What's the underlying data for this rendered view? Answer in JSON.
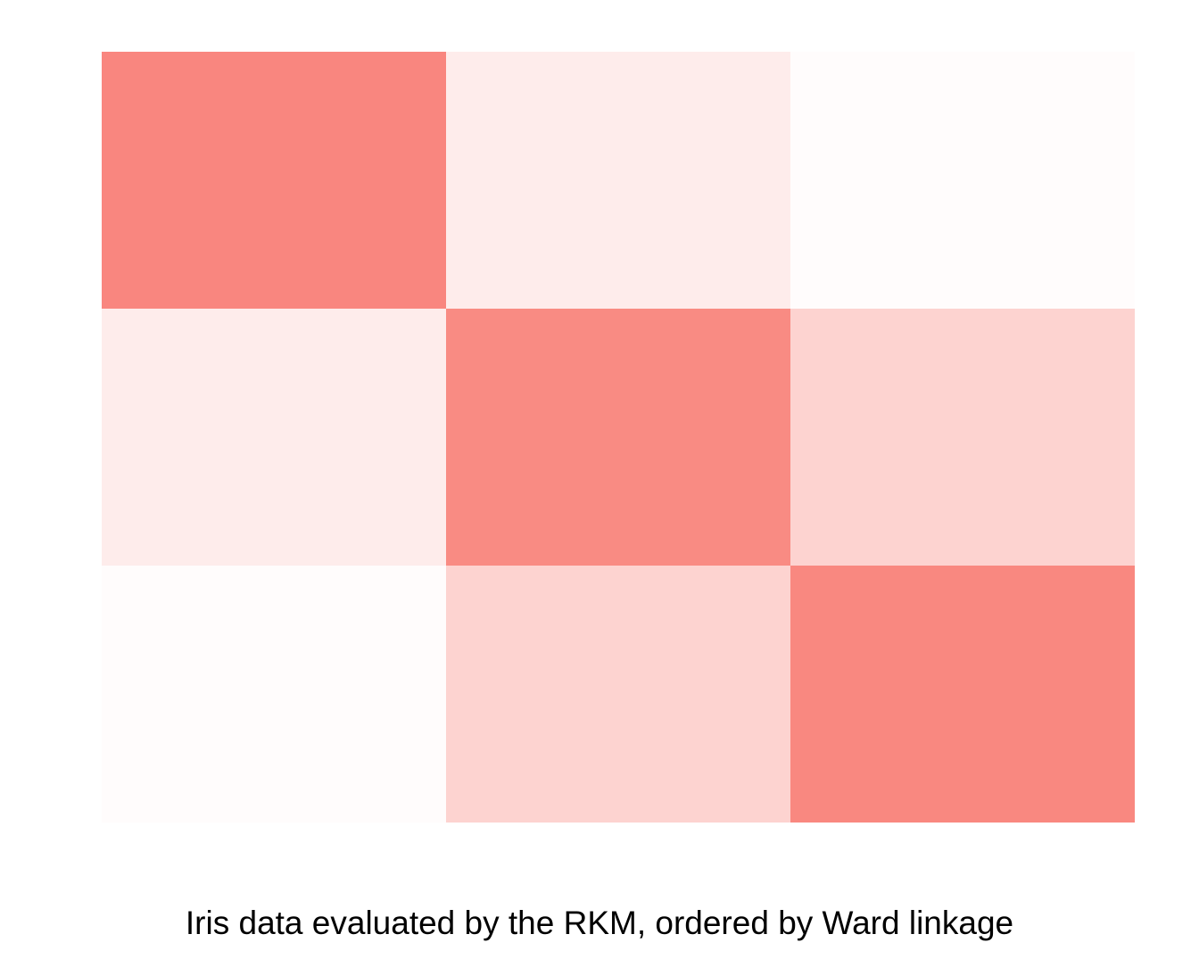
{
  "caption": "Iris data evaluated by the RKM, ordered by Ward linkage",
  "colors": {
    "high": "#f8766d",
    "low": "#ffffff",
    "background": "#ffffff"
  },
  "chart_data": {
    "type": "heatmap",
    "title": "",
    "xlabel": "",
    "ylabel": "",
    "n_observations": 150,
    "value_range": [
      0,
      1
    ],
    "axis_ticks": "none",
    "grid": false,
    "legend": "none",
    "ordering": "Ward linkage",
    "clusters": [
      {
        "name": "",
        "size": 50
      },
      {
        "name": "",
        "size": 50
      },
      {
        "name": "",
        "size": 50
      }
    ],
    "block_similarity": [
      [
        0.88,
        0.14,
        0.02
      ],
      [
        0.14,
        0.85,
        0.32
      ],
      [
        0.02,
        0.32,
        0.87
      ]
    ]
  }
}
